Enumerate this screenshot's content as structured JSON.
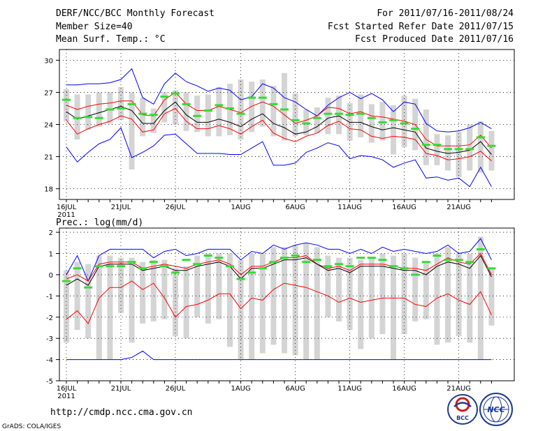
{
  "header": {
    "title": "DERF/NCC/BCC Monthly Forecast",
    "member_size": "Member Size=40",
    "variable_top": "Mean Surf. Temp.: °C",
    "period": "For 2011/07/16-2011/08/24",
    "refer_date": "Fcst Started Refer Date 2011/07/15",
    "produced_date": "Fcst Produced Date 2011/07/16"
  },
  "footer": {
    "url": "http://cmdp.ncc.cma.gov.cn",
    "grads": "GrADS: COLA/IGES",
    "logo_bcc_text": "BCC",
    "logo_ncc_text": "NCC"
  },
  "colors": {
    "envelope": "#0000ff",
    "spread": "#ff0000",
    "mean": "#000000",
    "box": "#d4d4d4",
    "observed_bar": "#33dd33"
  },
  "x_labels": [
    "16JUL",
    "21JUL",
    "26JUL",
    "1AUG",
    "6AUG",
    "11AUG",
    "16AUG",
    "21AUG"
  ],
  "x_label_positions": [
    0,
    5,
    10,
    16,
    21,
    26,
    31,
    36
  ],
  "x_year": "2011",
  "chart_data": [
    {
      "type": "line",
      "title": "Mean Surf. Temp.: °C",
      "ylim": [
        17,
        31
      ],
      "yticks": [
        18,
        21,
        24,
        27,
        30
      ],
      "grid": true,
      "n_days": 40,
      "series": [
        {
          "name": "max",
          "color": "#0000ff",
          "values": [
            27.7,
            27.7,
            27.8,
            27.8,
            27.9,
            28.2,
            29.2,
            26.5,
            25.9,
            27.8,
            28.8,
            28.0,
            27.6,
            27.1,
            27.4,
            27.2,
            26.3,
            26.6,
            27.8,
            27.4,
            26.5,
            26.1,
            25.4,
            24.8,
            25.8,
            26.5,
            27.0,
            26.4,
            26.9,
            26.3,
            25.2,
            26.1,
            25.9,
            24.1,
            23.4,
            23.3,
            23.4,
            23.7,
            24.2,
            23.6
          ]
        },
        {
          "name": "upper",
          "color": "#ff0000",
          "values": [
            25.8,
            25.4,
            25.7,
            25.9,
            26.0,
            26.2,
            26.2,
            24.9,
            24.8,
            26.3,
            27.0,
            25.9,
            25.3,
            25.3,
            25.7,
            25.4,
            25.1,
            25.7,
            26.1,
            25.7,
            24.9,
            24.1,
            24.4,
            24.8,
            25.6,
            25.5,
            25.0,
            25.2,
            24.8,
            24.7,
            24.5,
            24.3,
            24.0,
            22.6,
            22.0,
            22.0,
            22.0,
            22.1,
            23.0,
            21.8
          ]
        },
        {
          "name": "mean",
          "color": "#000000",
          "values": [
            25.2,
            24.5,
            24.8,
            25.1,
            25.4,
            25.7,
            25.3,
            24.1,
            24.1,
            25.3,
            26.1,
            24.9,
            24.2,
            24.2,
            24.5,
            24.2,
            23.8,
            24.5,
            25.0,
            24.1,
            23.7,
            23.1,
            23.3,
            23.8,
            24.6,
            24.8,
            24.2,
            24.2,
            23.8,
            23.5,
            23.7,
            23.5,
            23.3,
            21.8,
            21.5,
            21.3,
            21.4,
            21.6,
            22.4,
            21.2
          ]
        },
        {
          "name": "lower",
          "color": "#ff0000",
          "values": [
            24.4,
            23.1,
            23.6,
            24.0,
            24.3,
            24.8,
            24.5,
            23.3,
            23.5,
            25.0,
            25.5,
            24.3,
            23.6,
            23.6,
            23.9,
            23.6,
            23.1,
            23.8,
            24.4,
            23.2,
            22.7,
            22.4,
            22.9,
            23.2,
            23.9,
            24.3,
            23.6,
            23.5,
            22.9,
            22.7,
            22.9,
            22.8,
            22.6,
            21.3,
            21.1,
            20.7,
            20.8,
            21.0,
            21.5,
            20.6
          ]
        },
        {
          "name": "min",
          "color": "#0000ff",
          "values": [
            21.9,
            20.5,
            21.4,
            22.2,
            22.6,
            23.7,
            20.9,
            21.4,
            22.0,
            23.0,
            23.1,
            22.2,
            21.3,
            21.3,
            21.3,
            21.2,
            21.2,
            21.8,
            22.4,
            20.2,
            20.2,
            20.4,
            21.4,
            21.8,
            22.3,
            22.0,
            20.8,
            21.1,
            21.0,
            20.7,
            20.0,
            20.4,
            20.7,
            19.0,
            19.1,
            18.8,
            19.0,
            18.2,
            20.0,
            18.2
          ]
        }
      ],
      "boxes": {
        "high": [
          27.3,
          26.8,
          26.8,
          27.0,
          27.0,
          27.5,
          27.0,
          26.5,
          25.5,
          27.0,
          27.2,
          27.0,
          26.7,
          26.8,
          27.5,
          27.8,
          28.2,
          28.0,
          28.2,
          27.6,
          28.8,
          26.9,
          25.4,
          25.6,
          26.5,
          26.7,
          26.0,
          26.8,
          25.9,
          26.1,
          25.8,
          26.7,
          26.4,
          25.4,
          23.1,
          23.0,
          23.3,
          24.0,
          24.3,
          23.4
        ],
        "low": [
          24.3,
          22.6,
          23.5,
          23.8,
          24.1,
          24.4,
          19.8,
          22.9,
          23.2,
          24.2,
          24.0,
          23.4,
          23.3,
          22.9,
          22.9,
          23.0,
          22.6,
          23.3,
          23.8,
          22.9,
          22.5,
          22.9,
          23.0,
          23.2,
          23.1,
          23.1,
          22.5,
          22.8,
          22.3,
          22.5,
          21.2,
          21.9,
          21.6,
          20.2,
          20.2,
          19.7,
          19.1,
          19.7,
          19.5,
          19.7
        ]
      },
      "observed": [
        26.3,
        24.6,
        24.7,
        24.6,
        25.4,
        25.5,
        25.9,
        25.0,
        24.9,
        26.6,
        26.9,
        25.9,
        24.8,
        25.3,
        25.8,
        25.5,
        25.0,
        26.5,
        26.5,
        25.9,
        25.4,
        24.4,
        24.1,
        24.6,
        25.0,
        25.0,
        24.9,
        25.0,
        24.6,
        24.2,
        24.4,
        24.1,
        23.6,
        22.1,
        22.1,
        21.7,
        21.7,
        21.7,
        22.8,
        22.0
      ]
    },
    {
      "type": "line",
      "title": "Prec.: log(mm/d)",
      "ylim": [
        -5,
        2.2
      ],
      "yticks": [
        -5,
        -4,
        -3,
        -2,
        -1,
        0,
        1,
        2
      ],
      "grid": true,
      "n_days": 40,
      "series": [
        {
          "name": "max",
          "color": "#0000ff",
          "values": [
            0.0,
            0.9,
            -0.3,
            0.9,
            1.2,
            1.2,
            1.2,
            1.2,
            0.8,
            1.1,
            1.2,
            0.9,
            1.0,
            1.2,
            1.2,
            1.2,
            0.7,
            1.1,
            1.0,
            1.4,
            1.2,
            1.4,
            1.5,
            1.4,
            1.2,
            1.2,
            1.0,
            1.2,
            1.0,
            1.3,
            1.1,
            1.2,
            1.1,
            1.0,
            1.1,
            1.4,
            1.0,
            1.1,
            1.7,
            0.7
          ]
        },
        {
          "name": "upper",
          "color": "#ff0000",
          "values": [
            -0.2,
            0.0,
            -0.3,
            0.5,
            0.6,
            0.6,
            0.6,
            0.3,
            0.4,
            0.5,
            0.4,
            0.3,
            0.5,
            0.6,
            0.7,
            0.5,
            0.0,
            0.4,
            0.4,
            0.6,
            0.8,
            0.8,
            0.9,
            0.5,
            0.3,
            0.4,
            0.2,
            0.5,
            0.5,
            0.5,
            0.4,
            0.3,
            0.3,
            0.2,
            0.5,
            0.8,
            0.6,
            0.5,
            1.0,
            0.0
          ]
        },
        {
          "name": "mean",
          "color": "#000000",
          "values": [
            -0.5,
            -0.2,
            -0.5,
            0.4,
            0.5,
            0.5,
            0.5,
            0.2,
            0.3,
            0.4,
            0.2,
            0.2,
            0.4,
            0.5,
            0.6,
            0.4,
            -0.2,
            0.3,
            0.3,
            0.5,
            0.7,
            0.7,
            0.8,
            0.5,
            0.2,
            0.3,
            0.1,
            0.4,
            0.4,
            0.4,
            0.3,
            0.2,
            0.2,
            0.0,
            0.4,
            0.6,
            0.5,
            0.3,
            0.9,
            -0.1
          ]
        },
        {
          "name": "lower",
          "color": "#ff0000",
          "values": [
            -2.1,
            -1.7,
            -2.3,
            -1.1,
            -0.6,
            -0.6,
            -0.3,
            -0.7,
            -0.4,
            -1.1,
            -2.0,
            -1.5,
            -1.4,
            -1.2,
            -0.9,
            -0.9,
            -1.6,
            -1.1,
            -1.2,
            -0.7,
            -0.4,
            -0.5,
            -0.6,
            -0.8,
            -1.0,
            -1.3,
            -1.1,
            -1.3,
            -1.2,
            -1.1,
            -1.1,
            -1.1,
            -1.4,
            -1.5,
            -1.1,
            -0.9,
            -1.2,
            -1.4,
            -0.8,
            -1.9
          ]
        },
        {
          "name": "min",
          "color": "#0000ff",
          "values": [
            -4.0,
            -4.0,
            -4.0,
            -4.0,
            -4.0,
            -4.0,
            -3.9,
            -3.6,
            -4.0,
            -4.0,
            -4.0,
            -4.0,
            -4.0,
            -4.0,
            -4.0,
            -4.0,
            -4.0,
            -4.0,
            -4.0,
            -4.0,
            -4.0,
            -4.0,
            -4.0,
            -4.0,
            -4.0,
            -4.0,
            -4.0,
            -4.0,
            -4.0,
            -4.0,
            -4.0,
            -4.0,
            -4.0,
            -4.0,
            -4.0,
            -4.0,
            -4.0,
            -4.0,
            -4.0,
            -4.0
          ]
        }
      ],
      "boxes": {
        "high": [
          0.2,
          0.6,
          0.5,
          0.9,
          0.9,
          0.8,
          0.8,
          0.6,
          0.7,
          0.7,
          0.3,
          0.4,
          0.9,
          1.0,
          1.0,
          1.0,
          0.7,
          1.0,
          1.0,
          1.3,
          1.3,
          1.4,
          1.5,
          1.3,
          0.9,
          0.8,
          0.8,
          0.7,
          0.8,
          1.0,
          0.9,
          1.0,
          0.8,
          0.6,
          1.0,
          1.3,
          1.0,
          1.0,
          1.8,
          0.3
        ],
        "low": [
          -3.2,
          -2.6,
          -3.0,
          -4.0,
          -4.0,
          -1.8,
          -3.2,
          -2.3,
          -2.2,
          -2.1,
          -2.9,
          -3.0,
          -2.0,
          -2.3,
          -2.1,
          -3.4,
          -4.0,
          -4.0,
          -3.7,
          -3.3,
          -3.7,
          -3.8,
          -4.0,
          -4.0,
          -2.0,
          -2.2,
          -2.6,
          -3.5,
          -3.0,
          -2.8,
          -4.0,
          -2.8,
          -2.2,
          -2.1,
          -3.3,
          -3.2,
          -2.9,
          -3.2,
          -4.0,
          -2.4
        ]
      },
      "observed": [
        -0.3,
        0.3,
        -0.6,
        0.4,
        0.4,
        0.4,
        0.6,
        0.3,
        0.6,
        0.4,
        0.1,
        0.7,
        0.5,
        0.9,
        0.8,
        0.4,
        -0.2,
        0.1,
        0.3,
        0.6,
        0.8,
        0.9,
        0.6,
        0.7,
        0.4,
        0.5,
        0.4,
        0.8,
        0.8,
        0.7,
        0.4,
        0.3,
        0.0,
        0.6,
        0.9,
        0.7,
        0.7,
        0.6,
        1.2,
        0.3
      ]
    }
  ]
}
